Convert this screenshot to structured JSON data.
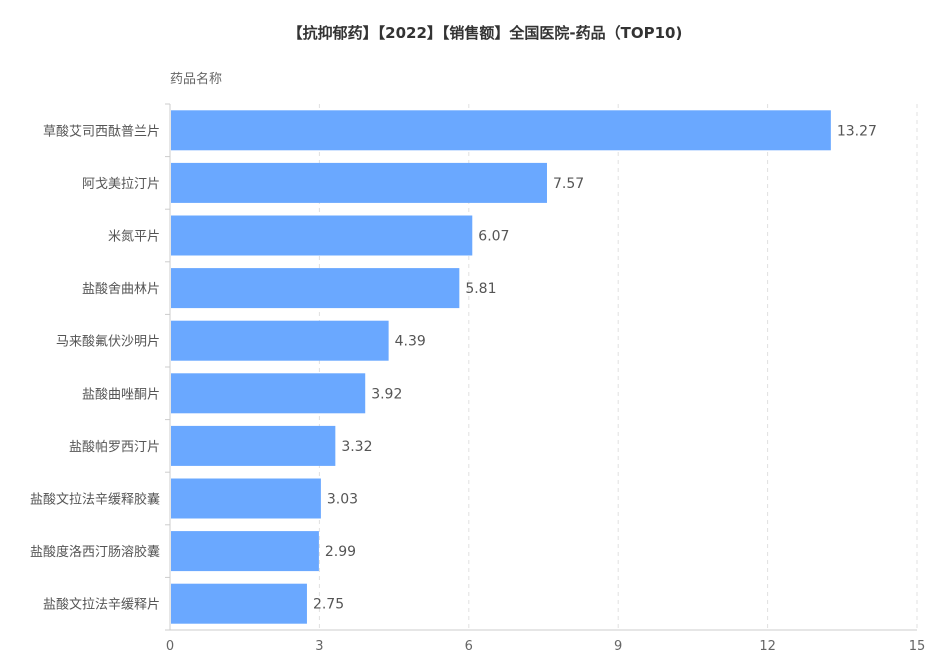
{
  "chart_data": {
    "type": "bar",
    "orientation": "horizontal",
    "title": "【抗抑郁药】【2022】【销售额】全国医院-药品（TOP10)",
    "ylabel": "药品名称",
    "xlabel": "",
    "categories": [
      "草酸艾司西酞普兰片",
      "阿戈美拉汀片",
      "米氮平片",
      "盐酸舍曲林片",
      "马来酸氟伏沙明片",
      "盐酸曲唑酮片",
      "盐酸帕罗西汀片",
      "盐酸文拉法辛缓释胶囊",
      "盐酸度洛西汀肠溶胶囊",
      "盐酸文拉法辛缓释片"
    ],
    "values": [
      13.27,
      7.57,
      6.07,
      5.81,
      4.39,
      3.92,
      3.32,
      3.03,
      2.99,
      2.75
    ],
    "value_labels": [
      "13.27",
      "7.57",
      "6.07",
      "5.81",
      "4.39",
      "3.92",
      "3.32",
      "3.03",
      "2.99",
      "2.75"
    ],
    "xlim": [
      0,
      15
    ],
    "xticks": [
      "0",
      "3",
      "6",
      "9",
      "12",
      "15"
    ],
    "grid": "vertical dashed",
    "bar_color": "#6aa8ff"
  }
}
